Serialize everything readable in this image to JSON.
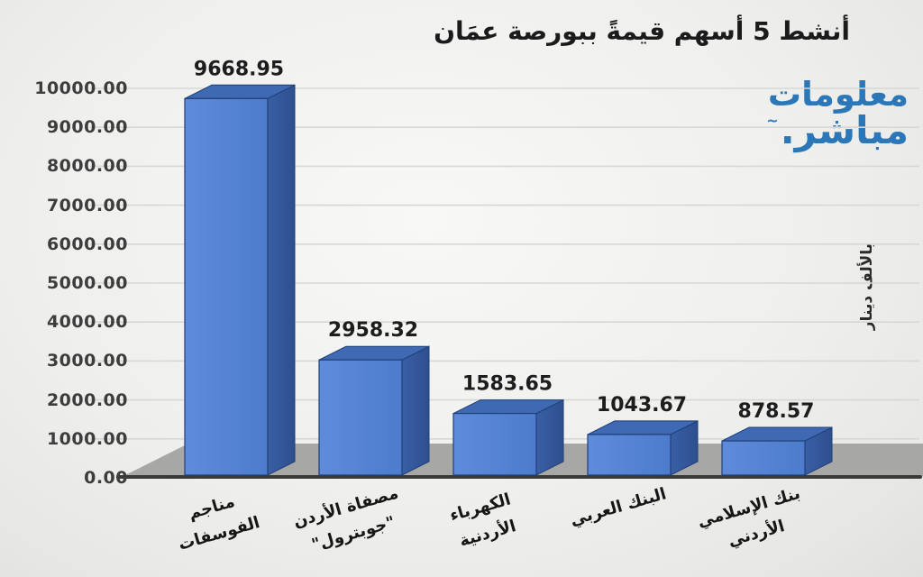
{
  "header": {
    "title": "أنشط 5 أسهم قيمةً ببورصة عمَان"
  },
  "logo": {
    "line1": "معلومات",
    "line2": "مباشر.",
    "trademark": "~",
    "color": "#2b77b8"
  },
  "axis": {
    "y_title": "بالألف دينار",
    "y_tick_labels": [
      "0.00",
      "1000.00",
      "2000.00",
      "3000.00",
      "4000.00",
      "5000.00",
      "6000.00",
      "7000.00",
      "8000.00",
      "9000.00",
      "10000.00"
    ]
  },
  "chart_data": {
    "type": "bar",
    "style": "3d",
    "title": "أنشط 5 أسهم قيمةً ببورصة عمَان",
    "categories": [
      "مناجم الفوسفات",
      "مصفاة الأردن \"جوبترول\"",
      "الكهرباء الأردنية",
      "البنك العربي",
      "بنك الإسلامي الأردني"
    ],
    "categories_lines": [
      [
        "مناجم",
        "الفوسفات"
      ],
      [
        "مصفاة الأردن",
        "\"جوبترول\""
      ],
      [
        "الكهرباء",
        "الأردنية"
      ],
      [
        "البنك العربي"
      ],
      [
        "بنك الإسلامي",
        "الأردني"
      ]
    ],
    "values": [
      9668.95,
      2958.32,
      1583.65,
      1043.67,
      878.57
    ],
    "value_labels": [
      "9668.95",
      "2958.32",
      "1583.65",
      "1043.67",
      "878.57"
    ],
    "xlabel": "",
    "ylabel": "بالألف دينار",
    "ylim": [
      0,
      10000
    ],
    "ytick_interval": 1000,
    "grid": true,
    "legend": false,
    "colors": {
      "bar_front": "#4d7ccc",
      "bar_front_light": "#5f8bda",
      "bar_top": "#3f69b2",
      "bar_side_dark": "#2e4f8e",
      "bar_side": "#3a5fa6",
      "bar_edge": "#1f3f77",
      "floor": "#a7a7a5",
      "floor_edge": "#3a3a38",
      "gridline": "#d7d7d5",
      "value_text": "#1d1d1d"
    }
  }
}
